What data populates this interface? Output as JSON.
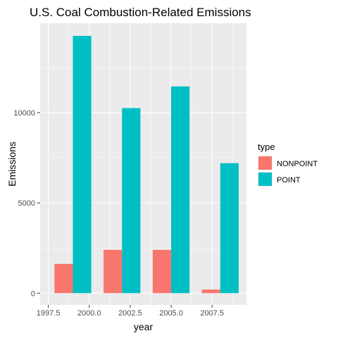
{
  "chart_data": {
    "type": "bar",
    "title": "U.S. Coal Combustion-Related Emissions",
    "xlabel": "year",
    "ylabel": "Emissions",
    "x_ticks": [
      "1997.5",
      "2000.0",
      "2002.5",
      "2005.0",
      "2007.5"
    ],
    "x_tick_values": [
      1997.5,
      2000.0,
      2002.5,
      2005.0,
      2007.5
    ],
    "y_ticks": [
      "0",
      "5000",
      "10000"
    ],
    "y_tick_values": [
      0,
      5000,
      10000
    ],
    "xlim": [
      1997.0,
      2009.6
    ],
    "ylim": [
      -650,
      14950
    ],
    "categories": [
      1999,
      2002,
      2005,
      2008
    ],
    "bar_width_years": 2.25,
    "series": [
      {
        "name": "NONPOINT",
        "color": "#F8766D",
        "values": [
          1620,
          2400,
          2400,
          200
        ]
      },
      {
        "name": "POINT",
        "color": "#00BFC4",
        "values": [
          14250,
          10250,
          11450,
          7200
        ]
      }
    ],
    "grid": true,
    "legend": {
      "title": "type",
      "position": "right"
    },
    "panel_background": "#EBEBEB",
    "grid_color": "#FFFFFF"
  }
}
